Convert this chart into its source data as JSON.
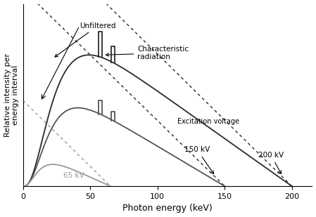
{
  "xlabel": "Photon energy (keV)",
  "ylabel": "Relative intensity per\nenergy interval",
  "xlim": [
    0,
    215
  ],
  "ylim": [
    0,
    1.0
  ],
  "xticks": [
    0,
    50,
    100,
    150,
    200
  ],
  "colors": {
    "dark": "#2a2a2a",
    "medium": "#555555",
    "light": "#999999"
  },
  "figsize": [
    4.49,
    3.09
  ],
  "dpi": 100
}
